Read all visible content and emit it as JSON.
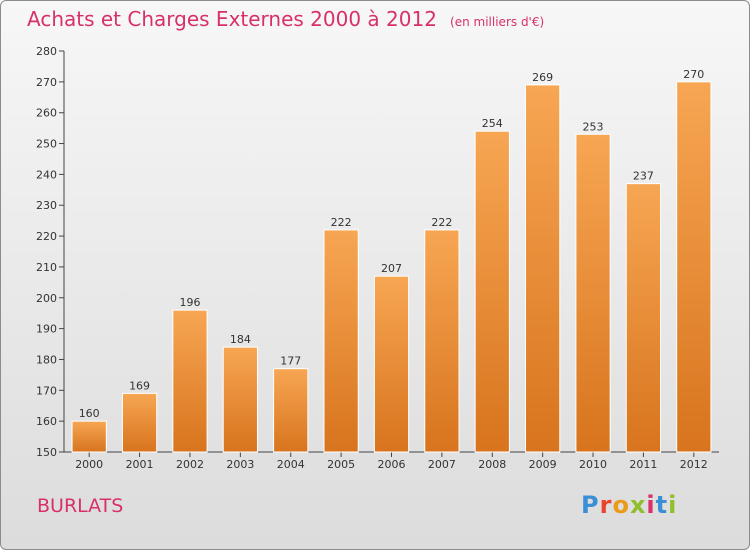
{
  "title": "Achats et Charges Externes 2000 à 2012",
  "unit": "(en milliers d'€)",
  "place": "BURLATS",
  "logo": {
    "letters": [
      "P",
      "r",
      "o",
      "x",
      "i",
      "t",
      "i"
    ],
    "colors": [
      "#3a8fd6",
      "#e8452c",
      "#e99b1a",
      "#8fbf2a",
      "#d8306b",
      "#3a8fd6",
      "#8fbf2a"
    ]
  },
  "chart_data": {
    "type": "bar",
    "categories": [
      "2000",
      "2001",
      "2002",
      "2003",
      "2004",
      "2005",
      "2006",
      "2007",
      "2008",
      "2009",
      "2010",
      "2011",
      "2012"
    ],
    "values": [
      160,
      169,
      196,
      184,
      177,
      222,
      207,
      222,
      254,
      269,
      253,
      237,
      270
    ],
    "ylim": [
      150,
      280
    ],
    "yticks": [
      150,
      160,
      170,
      180,
      190,
      200,
      210,
      220,
      230,
      240,
      250,
      260,
      270,
      280
    ],
    "grid": false,
    "colors": {
      "bar_top": "#f7a653",
      "bar_bottom": "#d8741d",
      "title": "#d8306b"
    }
  }
}
